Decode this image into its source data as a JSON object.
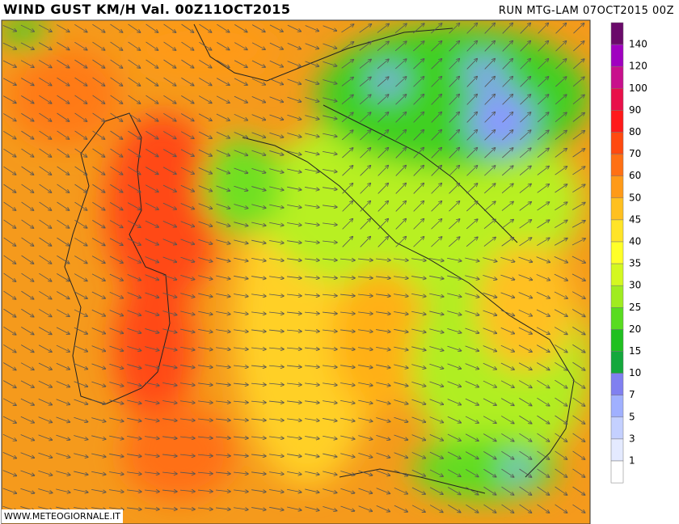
{
  "header": {
    "title": "WIND GUST KM/H Val. 00Z11OCT2015",
    "run": "RUN MTG-LAM 07OCT2015 00Z"
  },
  "legend": {
    "labels": [
      140,
      120,
      100,
      90,
      80,
      70,
      60,
      50,
      45,
      40,
      35,
      30,
      25,
      20,
      15,
      10,
      7,
      5,
      3,
      1
    ],
    "colors": [
      "#6a0a6a",
      "#a000c0",
      "#c8108c",
      "#e8104a",
      "#ff1a1a",
      "#ff4a10",
      "#ff7014",
      "#ff9a18",
      "#ffc020",
      "#ffe428",
      "#ffff28",
      "#d4f820",
      "#a0ec20",
      "#58dc20",
      "#20c020",
      "#14a83c",
      "#8080f0",
      "#a0b0ff",
      "#c4d0ff",
      "#e4eaff",
      "#ffffff"
    ]
  },
  "footer": {
    "watermark": "WWW.METEOGIORNALE.IT"
  }
}
